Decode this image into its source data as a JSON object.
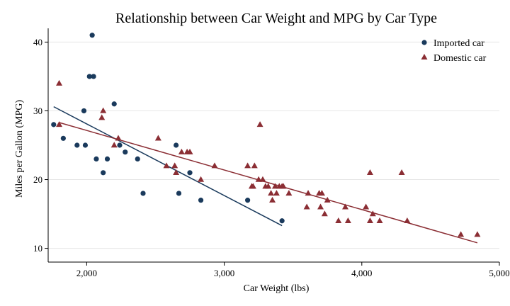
{
  "chart_data": {
    "type": "scatter",
    "title": "Relationship between Car Weight and MPG by Car Type",
    "xlabel": "Car Weight (lbs)",
    "ylabel": "Miles per Gallon (MPG)",
    "xlim": [
      1720,
      5000
    ],
    "ylim": [
      8,
      42
    ],
    "xticks": [
      2000,
      3000,
      4000,
      5000
    ],
    "xtick_labels": [
      "2,000",
      "3,000",
      "4,000",
      "5,000"
    ],
    "yticks": [
      10,
      20,
      30,
      40
    ],
    "ytick_labels": [
      "10",
      "20",
      "30",
      "40"
    ],
    "grid": "horizontal",
    "legend_position": "top-right",
    "series": [
      {
        "name": "Imported car",
        "marker": "circle",
        "color": "#1a3a5c",
        "points": [
          [
            1760,
            28
          ],
          [
            1830,
            26
          ],
          [
            1930,
            25
          ],
          [
            1980,
            30
          ],
          [
            1990,
            25
          ],
          [
            2020,
            35
          ],
          [
            2040,
            41
          ],
          [
            2050,
            35
          ],
          [
            2070,
            23
          ],
          [
            2120,
            21
          ],
          [
            2150,
            23
          ],
          [
            2200,
            31
          ],
          [
            2240,
            25
          ],
          [
            2280,
            24
          ],
          [
            2370,
            23
          ],
          [
            2410,
            18
          ],
          [
            2650,
            25
          ],
          [
            2670,
            18
          ],
          [
            2750,
            21
          ],
          [
            2830,
            17
          ],
          [
            3170,
            17
          ],
          [
            3420,
            14
          ]
        ],
        "fit": [
          [
            1760,
            30.6
          ],
          [
            3420,
            13.3
          ]
        ]
      },
      {
        "name": "Domestic car",
        "marker": "triangle",
        "color": "#8b2e34",
        "points": [
          [
            1800,
            34
          ],
          [
            1800,
            28
          ],
          [
            2110,
            29
          ],
          [
            2120,
            30
          ],
          [
            2200,
            25
          ],
          [
            2230,
            26
          ],
          [
            2520,
            26
          ],
          [
            2580,
            22
          ],
          [
            2640,
            22
          ],
          [
            2650,
            21
          ],
          [
            2690,
            24
          ],
          [
            2730,
            24
          ],
          [
            2750,
            24
          ],
          [
            2830,
            20
          ],
          [
            2930,
            22
          ],
          [
            3170,
            22
          ],
          [
            3200,
            19
          ],
          [
            3210,
            19
          ],
          [
            3220,
            22
          ],
          [
            3250,
            20
          ],
          [
            3260,
            28
          ],
          [
            3280,
            20
          ],
          [
            3300,
            19
          ],
          [
            3320,
            19
          ],
          [
            3340,
            18
          ],
          [
            3350,
            17
          ],
          [
            3370,
            19
          ],
          [
            3380,
            18
          ],
          [
            3400,
            19
          ],
          [
            3420,
            19
          ],
          [
            3430,
            19
          ],
          [
            3470,
            18
          ],
          [
            3600,
            16
          ],
          [
            3610,
            18
          ],
          [
            3690,
            18
          ],
          [
            3700,
            16
          ],
          [
            3710,
            18
          ],
          [
            3730,
            15
          ],
          [
            3750,
            17
          ],
          [
            3830,
            14
          ],
          [
            3880,
            16
          ],
          [
            3900,
            14
          ],
          [
            4030,
            16
          ],
          [
            4060,
            21
          ],
          [
            4060,
            14
          ],
          [
            4080,
            15
          ],
          [
            4130,
            14
          ],
          [
            4290,
            21
          ],
          [
            4330,
            14
          ],
          [
            4720,
            12
          ],
          [
            4840,
            12
          ]
        ],
        "fit": [
          [
            1800,
            28.3
          ],
          [
            4840,
            10.8
          ]
        ]
      }
    ]
  }
}
